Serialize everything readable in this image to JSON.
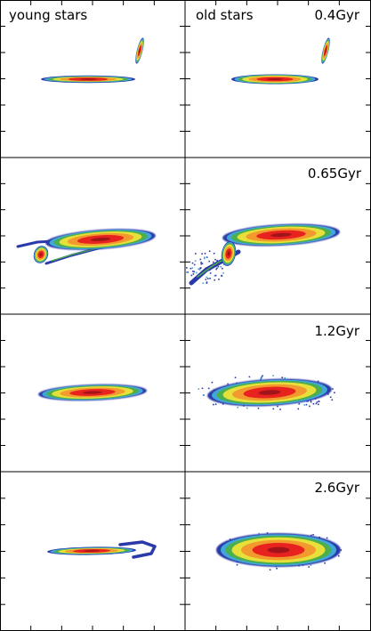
{
  "column_labels": [
    "young stars",
    "old stars"
  ],
  "time_labels": [
    "0.4Gyr",
    "0.65Gyr",
    "1.2Gyr",
    "2.6Gyr"
  ],
  "colormap": {
    "outer": "#2b3aa8",
    "mid_blue": "#3fa7d9",
    "green": "#4cae4c",
    "yellow": "#e8e03a",
    "orange": "#f29a2e",
    "red": "#e8231f",
    "core": "#a3141a"
  },
  "panels": [
    {
      "time": "0.4Gyr",
      "population": "young stars",
      "morphology": "thin edge-on disc with a small tilted companion"
    },
    {
      "time": "0.4Gyr",
      "population": "old stars",
      "morphology": "edge-on disc with a small tilted companion"
    },
    {
      "time": "0.65Gyr",
      "population": "young stars",
      "morphology": "warped disc with tidal tail and companion"
    },
    {
      "time": "0.65Gyr",
      "population": "old stars",
      "morphology": "warped disc with tidal tail and companion"
    },
    {
      "time": "1.2Gyr",
      "population": "young stars",
      "morphology": "elongated disc"
    },
    {
      "time": "1.2Gyr",
      "population": "old stars",
      "morphology": "thickened disc with diffuse halo"
    },
    {
      "time": "2.6Gyr",
      "population": "young stars",
      "morphology": "thin disc with a hooked tail"
    },
    {
      "time": "2.6Gyr",
      "population": "old stars",
      "morphology": "thick elliptical disc"
    }
  ]
}
